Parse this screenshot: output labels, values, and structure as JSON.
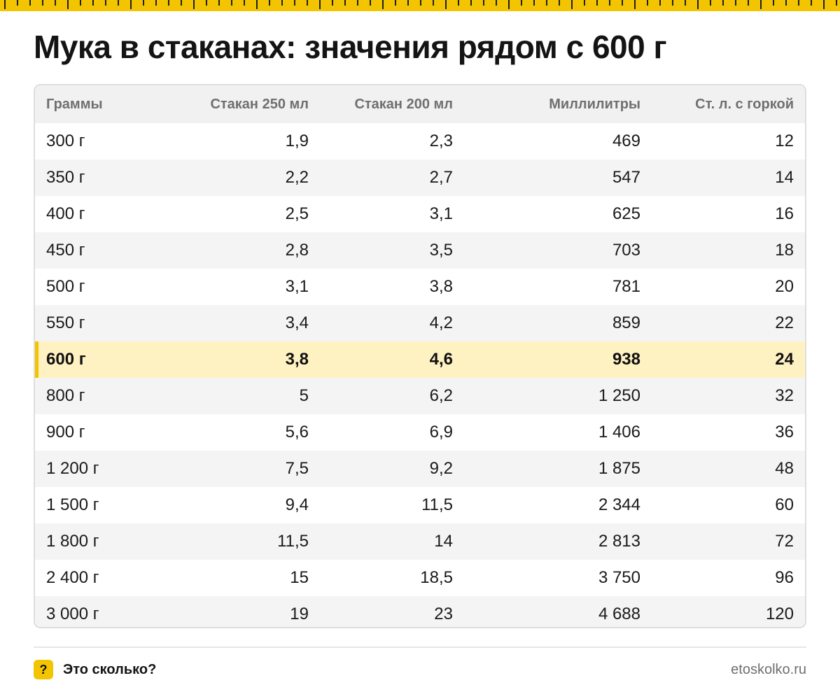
{
  "page": {
    "title": "Мука в стаканах: значения рядом с 600 г"
  },
  "colors": {
    "accent": "#f3c400",
    "highlight_row": "#fff2c2",
    "header_bg": "#f1f1f1",
    "stripe": "#f4f4f4"
  },
  "table": {
    "headers": [
      "Граммы",
      "Стакан 250 мл",
      "Стакан 200 мл",
      "Миллилитры",
      "Ст. л. с горкой"
    ],
    "highlight_index": 6,
    "rows": [
      [
        "300 г",
        "1,9",
        "2,3",
        "469",
        "12"
      ],
      [
        "350 г",
        "2,2",
        "2,7",
        "547",
        "14"
      ],
      [
        "400 г",
        "2,5",
        "3,1",
        "625",
        "16"
      ],
      [
        "450 г",
        "2,8",
        "3,5",
        "703",
        "18"
      ],
      [
        "500 г",
        "3,1",
        "3,8",
        "781",
        "20"
      ],
      [
        "550 г",
        "3,4",
        "4,2",
        "859",
        "22"
      ],
      [
        "600 г",
        "3,8",
        "4,6",
        "938",
        "24"
      ],
      [
        "800 г",
        "5",
        "6,2",
        "1 250",
        "32"
      ],
      [
        "900 г",
        "5,6",
        "6,9",
        "1 406",
        "36"
      ],
      [
        "1 200 г",
        "7,5",
        "9,2",
        "1 875",
        "48"
      ],
      [
        "1 500 г",
        "9,4",
        "11,5",
        "2 344",
        "60"
      ],
      [
        "1 800 г",
        "11,5",
        "14",
        "2 813",
        "72"
      ],
      [
        "2 400 г",
        "15",
        "18,5",
        "3 750",
        "96"
      ],
      [
        "3 000 г",
        "19",
        "23",
        "4 688",
        "120"
      ]
    ]
  },
  "footer": {
    "icon": "question-mark-icon",
    "icon_glyph": "?",
    "brand": "Это сколько?",
    "site": "etoskolko.ru"
  }
}
